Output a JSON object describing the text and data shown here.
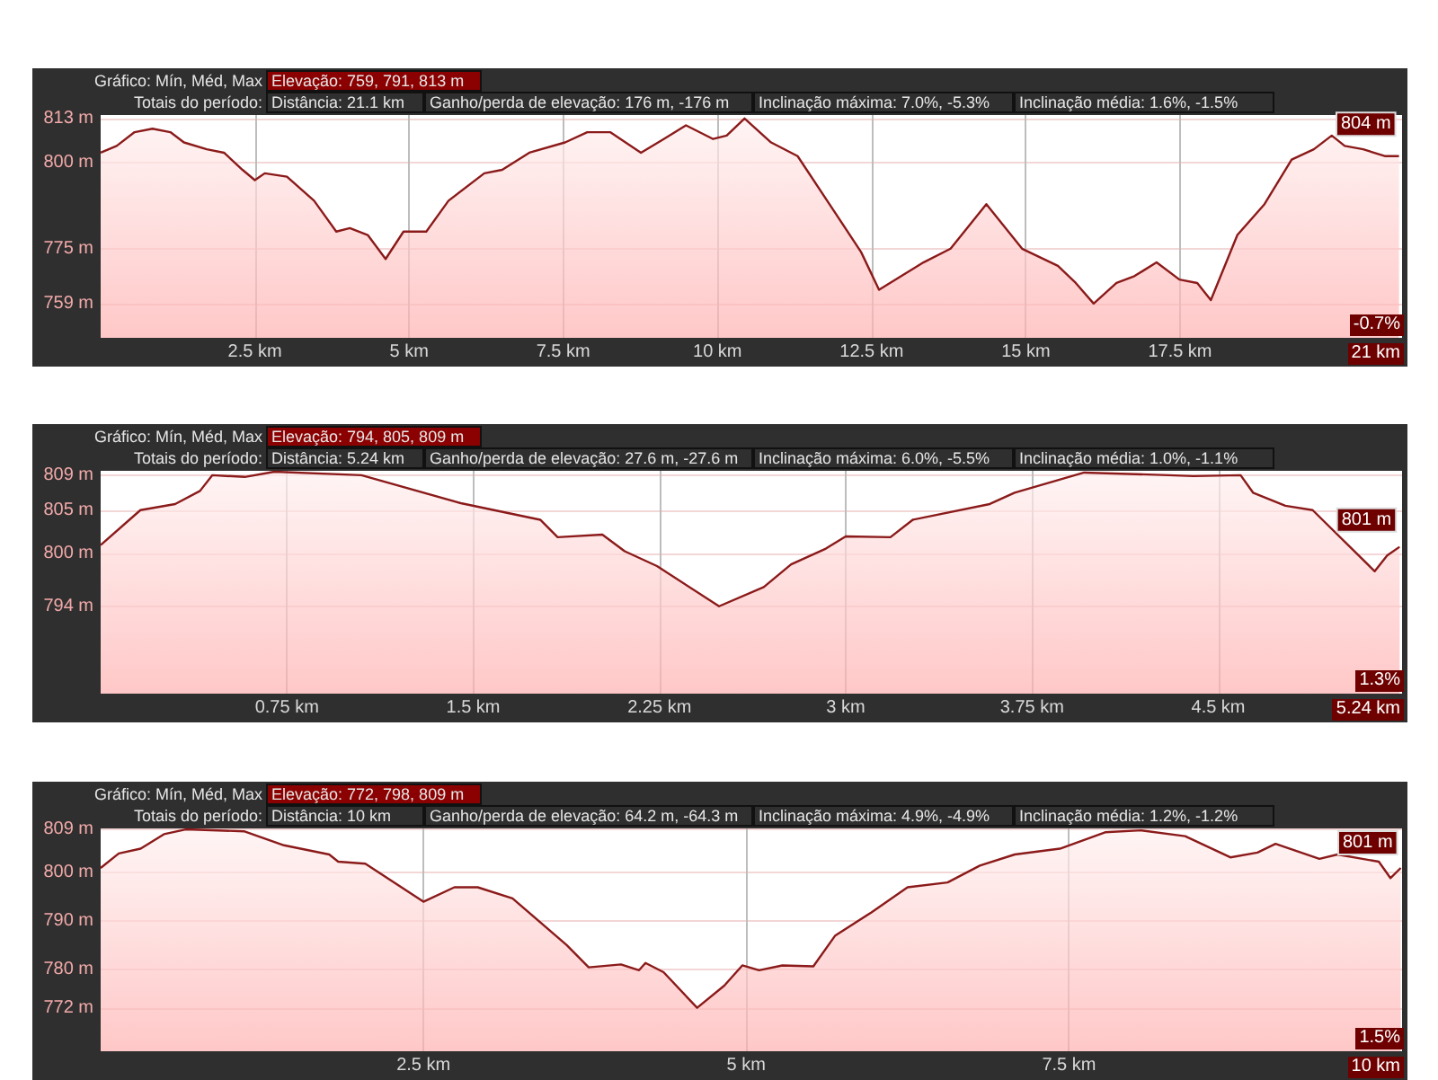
{
  "chart_data": [
    {
      "type": "area",
      "annotations": [
        "Gráfico: Mín, Méd, Max",
        "Elevação: 759, 791, 813 m",
        "Totais do período:",
        "Distância: 21.1 km",
        "Ganho/perda de elevação: 176 m, -176 m",
        "Inclinação máxima: 7.0%, -5.3%",
        "Inclinação média: 1.6%, -1.5%",
        "-0.7%",
        "21 km",
        {
          "text": "804 m",
          "x": 21.05,
          "y": 804
        }
      ],
      "x": [
        0,
        0.26,
        0.55,
        0.84,
        1.13,
        1.35,
        1.72,
        2.0,
        2.3,
        2.5,
        2.66,
        3.02,
        3.46,
        3.82,
        4.04,
        4.33,
        4.62,
        4.91,
        5.28,
        5.64,
        6.22,
        6.51,
        6.95,
        7.53,
        7.89,
        8.26,
        8.76,
        9.13,
        9.49,
        9.93,
        10.15,
        10.44,
        10.87,
        11.3,
        11.89,
        12.33,
        12.62,
        12.98,
        13.34,
        13.78,
        14.36,
        14.94,
        15.52,
        15.81,
        16.1,
        16.47,
        16.76,
        17.12,
        17.49,
        17.78,
        18.0,
        18.43,
        18.87,
        19.31,
        19.67,
        19.96,
        20.17,
        20.47,
        20.83,
        21.05
      ],
      "series": [
        {
          "color": "#8b1a1a",
          "values": [
            803,
            805,
            809,
            810,
            809,
            806,
            804,
            803,
            798,
            795,
            797,
            796,
            789,
            780,
            781,
            779,
            772,
            780,
            780,
            789,
            797,
            798,
            803,
            806,
            809,
            809,
            803,
            807,
            811,
            807,
            808,
            813,
            806,
            802,
            786,
            774,
            763,
            767,
            771,
            775,
            788,
            775,
            770,
            765,
            759,
            765,
            767,
            771,
            766,
            765,
            760,
            779,
            788,
            801,
            804,
            808,
            805,
            804,
            802,
            802
          ]
        }
      ],
      "xlim": [
        0,
        21.1
      ],
      "ylim": [
        749,
        814
      ],
      "xticks": [
        {
          "value": 2.5,
          "label": "2.5 km"
        },
        {
          "value": 5,
          "label": "5 km"
        },
        {
          "value": 7.5,
          "label": "7.5 km"
        },
        {
          "value": 10,
          "label": "10 km"
        },
        {
          "value": 12.5,
          "label": "12.5 km"
        },
        {
          "value": 15,
          "label": "15 km"
        },
        {
          "value": 17.5,
          "label": "17.5 km"
        }
      ],
      "yticks": [
        {
          "value": 759,
          "label": "759 m"
        },
        {
          "value": 775,
          "label": "775 m"
        },
        {
          "value": 800,
          "label": "800 m"
        },
        {
          "value": 813,
          "label": "813 m"
        }
      ],
      "grid": true
    },
    {
      "type": "area",
      "annotations": [
        "Gráfico: Mín, Méd, Max",
        "Elevação: 794, 805, 809 m",
        "Totais do período:",
        "Distância: 5.24 km",
        "Ganho/perda de elevação: 27.6 m, -27.6 m",
        "Inclinação máxima: 6.0%, -5.5%",
        "Inclinação média: 1.0%, -1.1%",
        "1.3%",
        "5.24 km",
        {
          "text": "801 m",
          "x": 5.23,
          "y": 801
        }
      ],
      "x": [
        0,
        0.16,
        0.3,
        0.4,
        0.45,
        0.58,
        0.7,
        1.05,
        1.45,
        1.77,
        1.84,
        2.02,
        2.11,
        2.24,
        2.49,
        2.67,
        2.78,
        2.92,
        3.0,
        3.18,
        3.27,
        3.58,
        3.68,
        3.96,
        4.3,
        4.4,
        4.59,
        4.64,
        4.77,
        4.88,
        5.13,
        5.18,
        5.23
      ],
      "series": [
        {
          "color": "#8b1a1a",
          "values": [
            801,
            805,
            805.7,
            807.2,
            809,
            808.8,
            809.4,
            809,
            805.8,
            803.9,
            801.9,
            802.2,
            800.3,
            798.6,
            794,
            796.2,
            798.8,
            800.6,
            802,
            801.9,
            803.9,
            805.7,
            807,
            809.3,
            809,
            808.9,
            809,
            807,
            805.5,
            805,
            798,
            799.8,
            800.8
          ]
        }
      ],
      "xlim": [
        0,
        5.24
      ],
      "ylim": [
        784,
        809.5
      ],
      "xticks": [
        {
          "value": 0.75,
          "label": "0.75 km"
        },
        {
          "value": 1.5,
          "label": "1.5 km"
        },
        {
          "value": 2.25,
          "label": "2.25 km"
        },
        {
          "value": 3,
          "label": "3 km"
        },
        {
          "value": 3.75,
          "label": "3.75 km"
        },
        {
          "value": 4.5,
          "label": "4.5 km"
        }
      ],
      "yticks": [
        {
          "value": 794,
          "label": "794 m"
        },
        {
          "value": 800,
          "label": "800 m"
        },
        {
          "value": 805,
          "label": "805 m"
        },
        {
          "value": 809,
          "label": "809 m"
        }
      ],
      "grid": true
    },
    {
      "type": "area",
      "annotations": [
        "Gráfico: Mín, Méd, Max",
        "Elevação: 772, 798, 809 m",
        "Totais do período:",
        "Distância: 10 km",
        "Ganho/perda de elevação: 64.2 m, -64.3 m",
        "Inclinação máxima: 4.9%, -4.9%",
        "Inclinação média: 1.2%, -1.2%",
        "1.5%",
        "10 km",
        {
          "text": "801 m",
          "x": 10.07,
          "y": 801
        }
      ],
      "x": [
        0,
        0.14,
        0.31,
        0.49,
        0.66,
        1.11,
        1.42,
        1.77,
        1.84,
        2.05,
        2.5,
        2.74,
        2.92,
        3.19,
        3.61,
        3.78,
        4.03,
        4.17,
        4.22,
        4.36,
        4.62,
        4.83,
        4.97,
        5.1,
        5.28,
        5.52,
        5.69,
        5.97,
        6.25,
        6.56,
        6.81,
        7.08,
        7.43,
        7.78,
        8.06,
        8.4,
        8.75,
        8.96,
        9.1,
        9.44,
        9.58,
        9.9,
        9.99,
        10.07
      ],
      "series": [
        {
          "color": "#8b1a1a",
          "values": [
            801,
            804,
            805,
            808,
            809,
            808.6,
            805.7,
            803.8,
            802.3,
            801.9,
            794,
            797,
            797,
            794.7,
            785,
            780.4,
            781,
            779.8,
            781.3,
            779.4,
            772,
            776.6,
            780.8,
            779.8,
            780.8,
            780.6,
            787,
            791.8,
            797,
            798,
            801.5,
            803.8,
            805,
            808.4,
            808.8,
            807.6,
            803.2,
            804.2,
            806,
            802.9,
            803.8,
            802.3,
            798.9,
            801
          ]
        }
      ],
      "xlim": [
        0,
        10.08
      ],
      "ylim": [
        763,
        809.2
      ],
      "xticks": [
        {
          "value": 2.5,
          "label": "2.5 km"
        },
        {
          "value": 5,
          "label": "5 km"
        },
        {
          "value": 7.5,
          "label": "7.5 km"
        }
      ],
      "yticks": [
        {
          "value": 772,
          "label": "772 m"
        },
        {
          "value": 780,
          "label": "780 m"
        },
        {
          "value": 790,
          "label": "790 m"
        },
        {
          "value": 800,
          "label": "800 m"
        },
        {
          "value": 809,
          "label": "809 m"
        }
      ],
      "grid": true
    }
  ]
}
